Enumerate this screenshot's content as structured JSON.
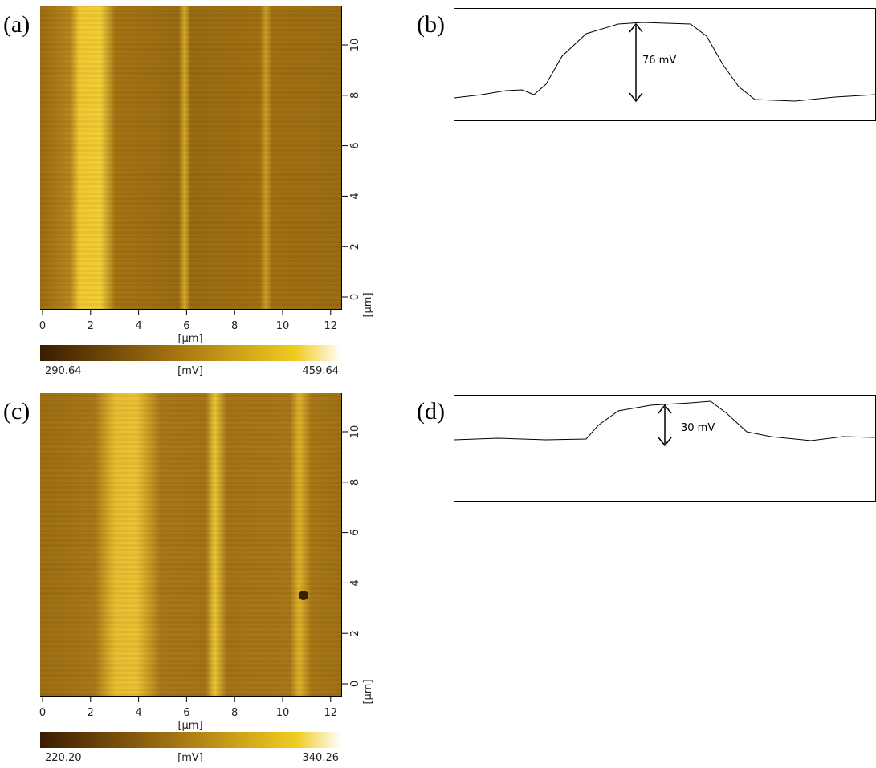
{
  "panels": [
    {
      "label": "(a)",
      "x_ticks": [
        0,
        2,
        4,
        6,
        8,
        10,
        12
      ],
      "y_ticks": [
        0,
        2,
        4,
        6,
        8,
        10
      ],
      "x_unit": "[µm]",
      "y_unit": "[µm]",
      "colorbar": {
        "min": "290.64",
        "unit": "[mV]",
        "max": "459.64"
      }
    },
    {
      "label": "(b)",
      "annotation": "76 mV"
    },
    {
      "label": "(c)",
      "x_ticks": [
        0,
        2,
        4,
        6,
        8,
        10,
        12
      ],
      "y_ticks": [
        0,
        2,
        4,
        6,
        8,
        10
      ],
      "x_unit": "[µm]",
      "y_unit": "[µm]",
      "colorbar": {
        "min": "220.20",
        "unit": "[mV]",
        "max": "340.26"
      }
    },
    {
      "label": "(d)",
      "annotation": "30 mV"
    }
  ]
}
